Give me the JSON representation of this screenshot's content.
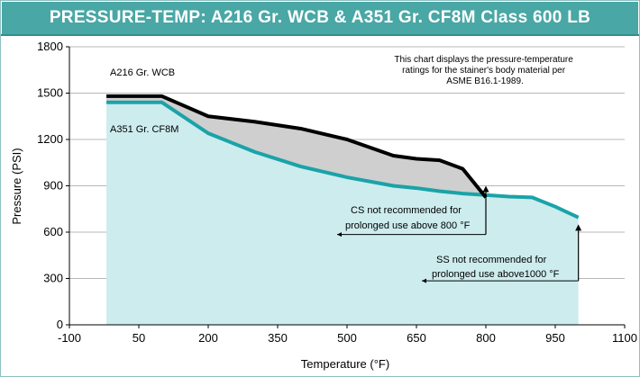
{
  "title": "PRESSURE-TEMP:  A216 Gr. WCB  & A351 Gr. CF8M Class 600 LB",
  "colors": {
    "title_bg": "#49a7a5",
    "wcb_line": "#000000",
    "wcb_fill": "#cfcfcf",
    "cf8m_line": "#1aa3a8",
    "cf8m_fill": "#cdecee"
  },
  "chart_data": {
    "type": "area",
    "xlabel": "Temperature (°F)",
    "ylabel": "Pressure (PSI)",
    "xlim": [
      -100,
      1100
    ],
    "ylim": [
      0,
      1800
    ],
    "xticks": [
      -100,
      50,
      200,
      350,
      500,
      650,
      800,
      950,
      1100
    ],
    "xtick_labels": [
      "-100",
      "50",
      "200",
      "350",
      "500",
      "650",
      "800",
      "950",
      "1100"
    ],
    "yticks": [
      0,
      300,
      600,
      900,
      1200,
      1500,
      1800
    ],
    "ytick_labels": [
      "0",
      "300",
      "600",
      "900",
      "1200",
      "1500",
      "1800"
    ],
    "grid": "horizontal",
    "series": [
      {
        "name": "A216 Gr. WCB",
        "x": [
          -20,
          100,
          200,
          300,
          400,
          500,
          600,
          650,
          700,
          750,
          800
        ],
        "y": [
          1480,
          1480,
          1350,
          1315,
          1270,
          1200,
          1095,
          1075,
          1065,
          1010,
          825
        ]
      },
      {
        "name": "A351 Gr. CF8M",
        "x": [
          -20,
          100,
          200,
          300,
          400,
          500,
          600,
          650,
          700,
          750,
          800,
          850,
          900,
          950,
          1000
        ],
        "y": [
          1440,
          1440,
          1240,
          1120,
          1025,
          955,
          900,
          885,
          865,
          850,
          840,
          830,
          825,
          765,
          695
        ]
      }
    ],
    "annotations": {
      "note": "This chart displays the pressure-temperature ratings  for the stainer's body material per ASME B16.1-1989.",
      "note_lines": [
        "This chart displays the pressure-temperature",
        "ratings  for the stainer's body material per",
        "ASME B16.1-1989."
      ],
      "cs_lines": [
        "CS not recommended for",
        "prolonged use above 800 °F"
      ],
      "ss_lines": [
        "SS not recommended for",
        "prolonged use above1000 °F"
      ],
      "cs_limit": {
        "x": 800,
        "y_top": 900,
        "y_bottom": 585
      },
      "ss_limit": {
        "x": 1000,
        "y_top": 650,
        "y_bottom": 285
      }
    }
  }
}
